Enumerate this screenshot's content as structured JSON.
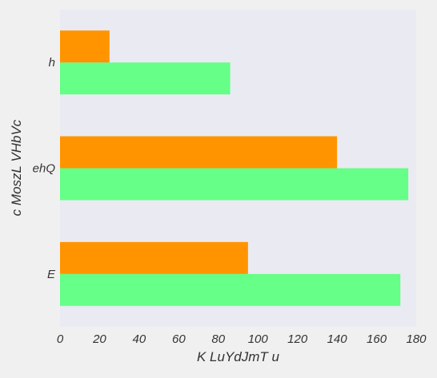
{
  "chart_data": {
    "type": "bar",
    "orientation": "horizontal",
    "categories": [
      "E",
      "ehQ",
      "h"
    ],
    "series": [
      {
        "values": [
          172,
          176,
          86
        ],
        "color": "#66ff88"
      },
      {
        "values": [
          95,
          140,
          25
        ],
        "color": "#ff9400"
      }
    ],
    "xlabel": "K LuYdJmT u",
    "ylabel": "c MoszL VHbVc",
    "xlim": [
      0,
      180
    ],
    "xticks": [
      "0",
      "20",
      "40",
      "60",
      "80",
      "100",
      "120",
      "140",
      "160",
      "180"
    ],
    "grid": false,
    "legend": "none"
  },
  "colors": {
    "page_background": "#f0f0f0",
    "plot_background": "#eaeaf2",
    "text": "#333333"
  }
}
